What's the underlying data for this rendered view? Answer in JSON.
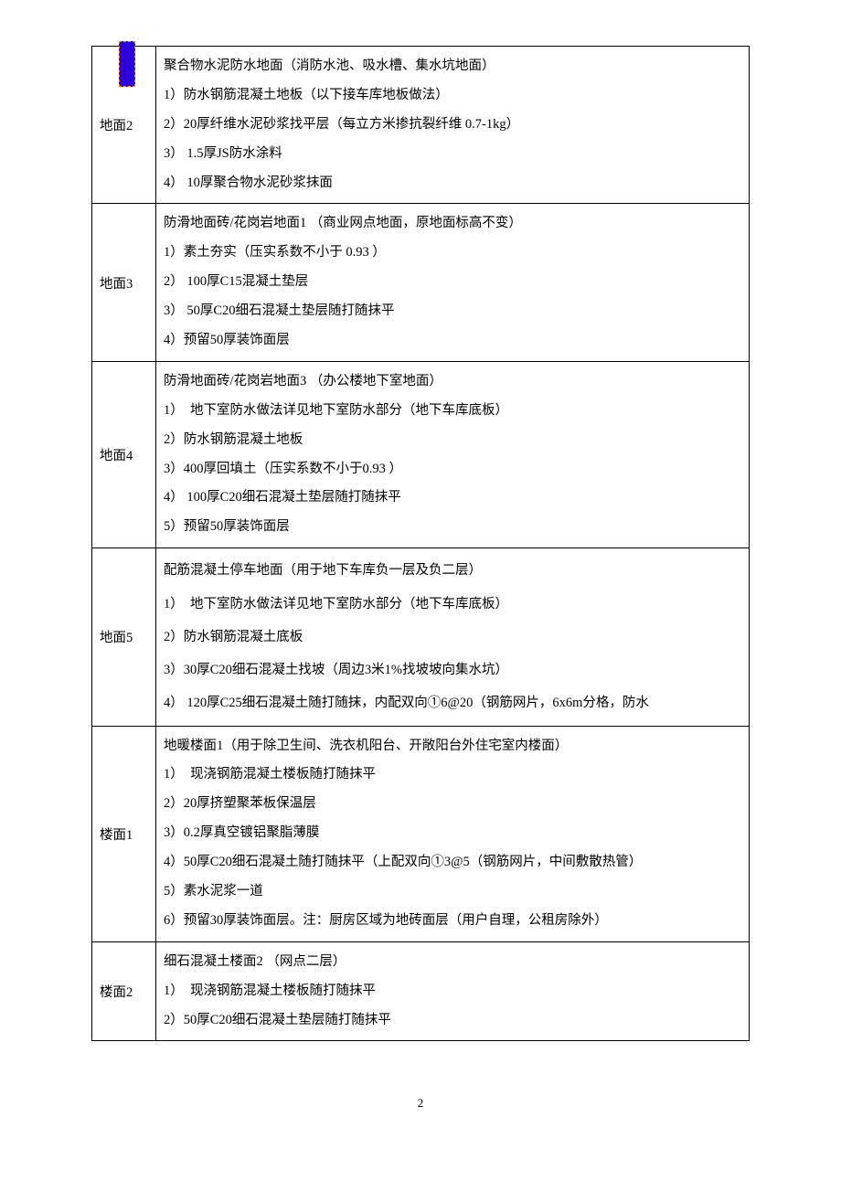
{
  "rows": [
    {
      "label": "地面2",
      "lines": [
        "聚合物水泥防水地面（消防水池、吸水槽、集水坑地面）",
        "1）防水钢筋混凝土地板（以下接车库地板做法）",
        "2）20厚纤维水泥砂浆找平层（每立方米掺抗裂纤维 0.7-1kg）",
        "3） 1.5厚JS防水涂料",
        "4） 10厚聚合物水泥砂浆抹面"
      ]
    },
    {
      "label": "地面3",
      "lines": [
        "防滑地面砖/花岗岩地面1 （商业网点地面，原地面标高不变）",
        "1）素土夯实（压实系数不小于 0.93 ）",
        "2） 100厚C15混凝土垫层",
        "3） 50厚C20细石混凝土垫层随打随抹平",
        "4）预留50厚装饰面层"
      ]
    },
    {
      "label": "地面4",
      "lines": [
        "防滑地面砖/花岗岩地面3 （办公楼地下室地面）",
        "1）　地下室防水做法详见地下室防水部分（地下车库底板）",
        "2）防水钢筋混凝土地板",
        "3）400厚回填土（压实系数不小于0.93 ）",
        "4） 100厚C20细石混凝土垫层随打随抹平",
        "5）预留50厚装饰面层"
      ]
    },
    {
      "label": "地面5",
      "lines": [
        "配筋混凝土停车地面（用于地下车库负一层及负二层）",
        "1）　地下室防水做法详见地下室防水部分（地下车库底板）",
        "2）防水钢筋混凝土底板",
        "3）30厚C20细石混凝土找坡（周边3米1%找坡坡向集水坑）",
        "4） 120厚C25细石混凝土随打随抹，内配双向①6@20（钢筋网片，6x6m分格，防水"
      ]
    },
    {
      "label": "楼面1",
      "lines": [
        "地暖楼面1（用于除卫生间、洗衣机阳台、开敞阳台外住宅室内楼面）",
        "1）　现浇钢筋混凝土楼板随打随抹平",
        "2）20厚挤塑聚苯板保温层",
        "3）0.2厚真空镀铝聚脂薄膜",
        "4）50厚C20细石混凝土随打随抹平（上配双向①3@5（钢筋网片，中间敷散热管）",
        "5）素水泥浆一道",
        "6）预留30厚装饰面层。注：厨房区域为地砖面层（用户自理，公租房除外）"
      ]
    },
    {
      "label": "楼面2",
      "lines": [
        "细石混凝土楼面2 （网点二层）",
        "1）　现浇钢筋混凝土楼板随打随抹平",
        "2）50厚C20细石混凝土垫层随打随抹平"
      ]
    }
  ],
  "pageNumber": "2"
}
